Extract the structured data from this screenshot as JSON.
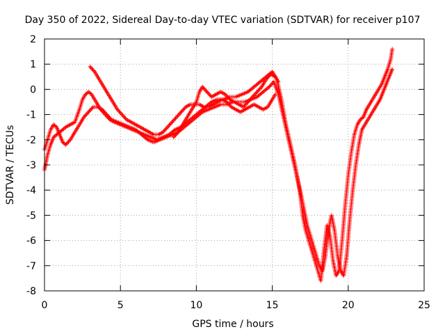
{
  "chart_data": {
    "type": "scatter",
    "title": "Day 350 of 2022, Sidereal Day-to-day VTEC variation (SDTVAR) for receiver p107",
    "xlabel": "GPS time / hours",
    "ylabel": "SDTVAR / TECUs",
    "xlim": [
      0,
      25
    ],
    "ylim": [
      -8,
      2
    ],
    "xticks": [
      "0",
      "5",
      "10",
      "15",
      "20",
      "25"
    ],
    "yticks": [
      "2",
      "1",
      "0",
      "-1",
      "-2",
      "-3",
      "-4",
      "-5",
      "-6",
      "-7",
      "-8"
    ],
    "grid": true,
    "marker": "+",
    "series": [
      {
        "color": "#ff0000",
        "x": [
          0.0,
          0.2,
          0.4,
          0.6,
          0.8,
          1.0,
          1.2,
          1.4,
          1.7,
          2.0,
          2.3,
          2.5,
          2.7,
          2.9,
          3.1,
          3.4,
          3.7,
          4.0,
          4.3,
          4.6,
          5.0,
          5.4,
          5.8,
          6.2,
          6.6,
          7.0,
          7.4,
          7.8,
          8.2,
          8.6,
          9.0,
          9.4,
          9.8,
          10.2,
          10.6,
          11.0,
          11.4,
          11.8,
          12.2,
          12.6,
          13.0,
          13.4,
          13.8,
          14.2,
          14.6,
          15.0,
          15.3,
          15.6,
          15.9,
          16.2,
          16.5,
          16.8,
          17.0,
          17.2,
          17.4,
          17.6,
          17.8,
          18.0,
          18.2,
          18.4,
          18.6,
          18.8,
          19.0,
          19.2,
          19.4,
          19.6,
          19.8,
          20.0,
          20.2,
          20.4,
          20.6,
          20.8,
          21.0,
          21.2,
          21.4,
          21.6,
          21.8,
          22.0,
          22.2,
          22.4,
          22.6,
          22.8,
          22.9
        ],
        "y": [
          -3.2,
          -2.6,
          -2.2,
          -1.9,
          -1.8,
          -1.7,
          -1.6,
          -1.5,
          -1.4,
          -1.3,
          -0.8,
          -0.4,
          -0.2,
          -0.1,
          -0.2,
          -0.5,
          -0.8,
          -1.0,
          -1.2,
          -1.3,
          -1.4,
          -1.5,
          -1.6,
          -1.7,
          -1.8,
          -1.9,
          -2.0,
          -1.9,
          -1.8,
          -1.6,
          -1.5,
          -1.3,
          -1.1,
          -0.9,
          -0.7,
          -0.5,
          -0.4,
          -0.4,
          -0.3,
          -0.3,
          -0.2,
          -0.1,
          0.1,
          0.3,
          0.5,
          0.7,
          0.4,
          -0.4,
          -1.4,
          -2.2,
          -3.0,
          -4.0,
          -5.0,
          -5.6,
          -6.0,
          -6.4,
          -6.8,
          -7.2,
          -7.6,
          -6.4,
          -5.4,
          -5.8,
          -6.8,
          -7.4,
          -7.2,
          -6.0,
          -4.6,
          -3.4,
          -2.5,
          -1.8,
          -1.4,
          -1.2,
          -1.1,
          -0.8,
          -0.6,
          -0.4,
          -0.2,
          0.0,
          0.2,
          0.5,
          0.8,
          1.2,
          1.6
        ]
      },
      {
        "color": "#ff0000",
        "x": [
          0.0,
          0.2,
          0.4,
          0.6,
          0.8,
          1.0,
          1.2,
          1.4,
          1.7,
          2.0,
          2.3,
          2.6,
          2.9,
          3.2,
          3.5,
          3.8,
          4.1,
          4.4,
          4.8,
          5.2,
          5.6,
          6.0,
          6.4,
          6.8,
          7.2,
          7.6,
          8.0,
          8.4,
          8.8,
          9.2,
          9.6,
          10.0,
          10.4,
          10.8,
          11.2,
          11.6,
          12.0,
          12.4,
          12.8,
          13.2,
          13.6,
          14.0,
          14.4,
          14.8,
          15.1,
          15.4,
          15.7,
          16.0,
          16.3,
          16.6,
          16.9,
          17.1,
          17.3,
          17.5,
          17.7,
          17.9,
          18.1,
          18.3,
          18.5,
          18.7,
          18.9,
          19.1,
          19.3,
          19.5,
          19.7,
          19.9,
          20.1,
          20.3,
          20.5,
          20.7,
          20.9,
          21.1,
          21.3,
          21.5,
          21.7,
          21.9,
          22.1,
          22.3,
          22.5,
          22.7,
          22.9
        ],
        "y": [
          -2.4,
          -2.0,
          -1.6,
          -1.4,
          -1.5,
          -1.8,
          -2.1,
          -2.2,
          -2.0,
          -1.7,
          -1.4,
          -1.1,
          -0.9,
          -0.7,
          -0.7,
          -0.8,
          -1.0,
          -1.2,
          -1.3,
          -1.4,
          -1.5,
          -1.6,
          -1.8,
          -2.0,
          -2.1,
          -2.0,
          -1.9,
          -1.8,
          -1.7,
          -1.5,
          -1.3,
          -1.1,
          -0.9,
          -0.8,
          -0.7,
          -0.6,
          -0.6,
          -0.5,
          -0.5,
          -0.5,
          -0.4,
          -0.3,
          -0.1,
          0.1,
          0.3,
          -0.2,
          -1.0,
          -1.8,
          -2.6,
          -3.4,
          -4.2,
          -4.8,
          -5.4,
          -5.8,
          -6.2,
          -6.6,
          -7.0,
          -7.2,
          -6.6,
          -5.6,
          -5.0,
          -5.6,
          -6.6,
          -7.2,
          -7.4,
          -6.6,
          -5.2,
          -4.0,
          -3.0,
          -2.2,
          -1.6,
          -1.4,
          -1.2,
          -1.0,
          -0.8,
          -0.6,
          -0.4,
          -0.1,
          0.2,
          0.5,
          0.8
        ]
      },
      {
        "color": "#ff0000",
        "x": [
          3.0,
          3.3,
          3.6,
          3.9,
          4.2,
          4.5,
          4.8,
          5.1,
          5.4,
          5.7,
          6.0,
          6.3,
          6.6,
          6.9,
          7.2,
          7.5,
          7.8,
          8.1,
          8.4,
          8.7,
          9.0,
          9.3,
          9.6,
          9.9,
          10.2,
          10.5,
          10.8,
          11.1,
          11.4,
          11.7,
          12.0,
          12.3,
          12.6,
          12.9,
          13.2,
          13.5,
          13.8,
          14.1,
          14.4,
          14.7,
          15.0,
          15.2
        ],
        "y": [
          0.9,
          0.7,
          0.4,
          0.1,
          -0.2,
          -0.5,
          -0.8,
          -1.0,
          -1.2,
          -1.3,
          -1.4,
          -1.5,
          -1.6,
          -1.7,
          -1.8,
          -1.8,
          -1.7,
          -1.5,
          -1.3,
          -1.1,
          -0.9,
          -0.7,
          -0.6,
          -0.6,
          -0.6,
          -0.7,
          -0.7,
          -0.6,
          -0.5,
          -0.4,
          -0.5,
          -0.7,
          -0.8,
          -0.9,
          -0.8,
          -0.7,
          -0.6,
          -0.7,
          -0.8,
          -0.7,
          -0.4,
          -0.2
        ]
      },
      {
        "color": "#ff0000",
        "x": [
          8.5,
          8.8,
          9.1,
          9.4,
          9.7,
          10.0,
          10.2,
          10.4,
          10.7,
          11.0,
          11.3,
          11.6,
          11.9,
          12.2,
          12.5,
          12.8,
          13.1,
          13.4,
          13.7,
          14.0,
          14.3,
          14.6,
          14.9,
          15.2,
          15.4
        ],
        "y": [
          -1.9,
          -1.7,
          -1.4,
          -1.1,
          -0.8,
          -0.5,
          -0.1,
          0.1,
          -0.1,
          -0.3,
          -0.2,
          -0.1,
          -0.2,
          -0.4,
          -0.5,
          -0.6,
          -0.7,
          -0.5,
          -0.3,
          -0.1,
          0.1,
          0.4,
          0.6,
          0.5,
          0.3
        ]
      }
    ]
  }
}
